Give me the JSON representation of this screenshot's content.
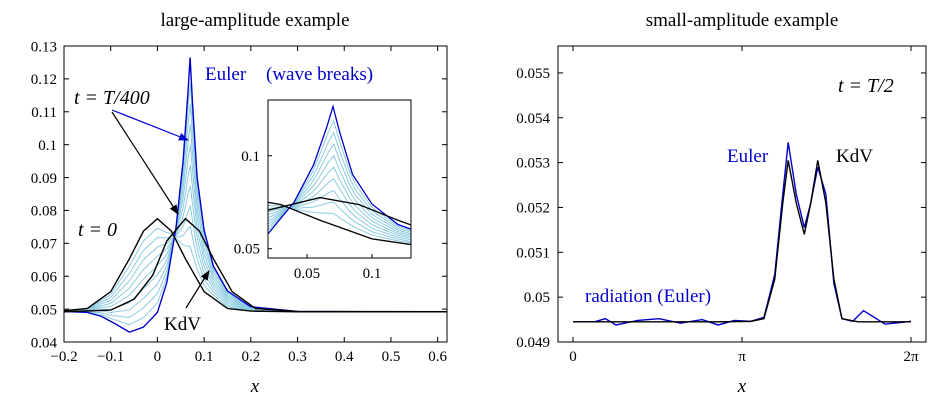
{
  "chart_data": [
    {
      "type": "line",
      "title": "large-amplitude example",
      "xlabel": "x",
      "ylabel": "",
      "xlim": [
        -0.2,
        0.62
      ],
      "ylim": [
        0.04,
        0.13
      ],
      "x_ticks": [
        -0.2,
        -0.1,
        0,
        0.1,
        0.2,
        0.3,
        0.4,
        0.5,
        0.6
      ],
      "x_tick_labels": [
        "−0.2",
        "−0.1",
        "0",
        "0.1",
        "0.2",
        "0.3",
        "0.4",
        "0.5",
        "0.6"
      ],
      "y_ticks": [
        0.04,
        0.05,
        0.06,
        0.07,
        0.08,
        0.09,
        0.1,
        0.11,
        0.12,
        0.13
      ],
      "y_tick_labels": [
        "0.04",
        "0.05",
        "0.06",
        "0.07",
        "0.08",
        "0.09",
        "0.1",
        "0.11",
        "0.12",
        "0.13"
      ],
      "grid": false,
      "series": [
        {
          "color": "#0000cc",
          "x": [
            -0.2,
            -0.15,
            -0.12,
            -0.09,
            -0.06,
            -0.03,
            0,
            0.02,
            0.04,
            0.055,
            0.065,
            0.07,
            0.075,
            0.085,
            0.1,
            0.12,
            0.15,
            0.2,
            0.3,
            0.45,
            0.62
          ],
          "y": [
            0.0493,
            0.049,
            0.0478,
            0.0455,
            0.043,
            0.0445,
            0.049,
            0.058,
            0.075,
            0.095,
            0.115,
            0.1265,
            0.113,
            0.09,
            0.074,
            0.063,
            0.0555,
            0.0507,
            0.0493,
            0.0492,
            0.0492
          ]
        },
        {
          "color": "#000000",
          "x": [
            -0.2,
            -0.15,
            -0.1,
            -0.06,
            -0.03,
            0,
            0.03,
            0.06,
            0.1,
            0.15,
            0.2,
            0.3,
            0.62
          ],
          "y": [
            0.0495,
            0.0502,
            0.0553,
            0.0653,
            0.0737,
            0.0775,
            0.0737,
            0.0653,
            0.0553,
            0.0502,
            0.0494,
            0.0492,
            0.0492
          ]
        },
        {
          "color": "#000000",
          "x": [
            -0.2,
            -0.1,
            -0.05,
            -0.01,
            0.02,
            0.06,
            0.09,
            0.12,
            0.16,
            0.21,
            0.3,
            0.62
          ],
          "y": [
            0.0492,
            0.0497,
            0.053,
            0.0603,
            0.0707,
            0.0775,
            0.0737,
            0.0653,
            0.0553,
            0.0502,
            0.0493,
            0.0492
          ]
        }
      ],
      "annotations": [
        {
          "text": "Euler",
          "color": "#0000cc"
        },
        {
          "text": "(wave breaks)",
          "color": "#0000cc"
        },
        {
          "text": "t = T/400",
          "color": "#000000"
        },
        {
          "text": "t = 0",
          "color": "#000000"
        },
        {
          "text": "KdV",
          "color": "#000000"
        }
      ],
      "inset": {
        "xlim": [
          0.02,
          0.13
        ],
        "ylim": [
          0.045,
          0.13
        ],
        "x_ticks": [
          0.05,
          0.1
        ],
        "x_tick_labels": [
          "0.05",
          "0.1"
        ],
        "y_ticks": [
          0.05,
          0.1
        ],
        "y_tick_labels": [
          "0.05",
          "0.1"
        ]
      }
    },
    {
      "type": "line",
      "title": "small-amplitude example",
      "xlabel": "x",
      "ylabel": "",
      "xlim": [
        0,
        6.2832
      ],
      "ylim": [
        0.049,
        0.0556
      ],
      "x_ticks": [
        0,
        3.1416,
        6.2832
      ],
      "x_tick_labels": [
        "0",
        "π",
        "2π"
      ],
      "y_ticks": [
        0.049,
        0.05,
        0.051,
        0.052,
        0.053,
        0.054,
        0.055
      ],
      "y_tick_labels": [
        "0.049",
        "0.05",
        "0.051",
        "0.052",
        "0.053",
        "0.054",
        "0.055"
      ],
      "grid": false,
      "series": [
        {
          "color": "#0000cc",
          "x": [
            0,
            0.4,
            0.6,
            0.8,
            1.2,
            1.6,
            2.0,
            2.4,
            2.7,
            3.0,
            3.3,
            3.55,
            3.75,
            3.9,
            4.0,
            4.15,
            4.3,
            4.42,
            4.55,
            4.7,
            4.85,
            5.0,
            5.2,
            5.4,
            5.8,
            6.2832
          ],
          "y": [
            0.04945,
            0.04945,
            0.04952,
            0.04938,
            0.04948,
            0.04952,
            0.04942,
            0.0495,
            0.04938,
            0.04948,
            0.04946,
            0.04955,
            0.0505,
            0.0523,
            0.05345,
            0.0523,
            0.05155,
            0.0521,
            0.0529,
            0.0523,
            0.0503,
            0.04952,
            0.04946,
            0.0497,
            0.0494,
            0.04946
          ]
        },
        {
          "color": "#000000",
          "x": [
            0,
            2.7,
            3.3,
            3.55,
            3.75,
            3.9,
            4.0,
            4.15,
            4.3,
            4.42,
            4.55,
            4.7,
            4.85,
            5.0,
            5.3,
            6.2832
          ],
          "y": [
            0.04945,
            0.04945,
            0.04946,
            0.04952,
            0.0504,
            0.0521,
            0.05305,
            0.0521,
            0.0514,
            0.0521,
            0.05305,
            0.0521,
            0.0504,
            0.04952,
            0.04945,
            0.04945
          ]
        }
      ],
      "annotations": [
        {
          "text": "t = T/2",
          "color": "#000000"
        },
        {
          "text": "Euler",
          "color": "#0000cc"
        },
        {
          "text": "KdV",
          "color": "#000000"
        },
        {
          "text": "radiation (Euler)",
          "color": "#0000cc"
        }
      ]
    }
  ]
}
